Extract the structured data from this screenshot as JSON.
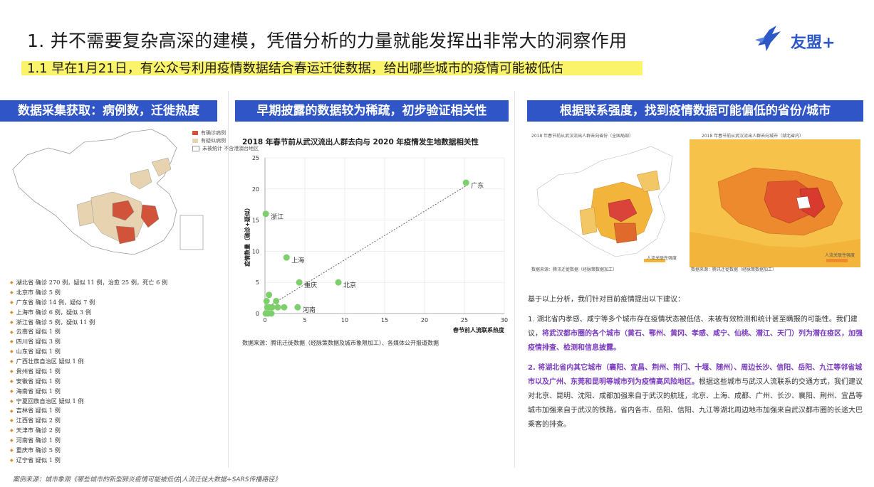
{
  "header": {
    "title": "1. 并不需要复杂高深的建模，凭借分析的力量就能发挥出非常大的洞察作用",
    "subtitle": "1.1 早在1月21日，有公众号利用疫情数据结合春运迁徙数据，给出哪些城市的疫情可能被低估",
    "logo_text": "友盟+"
  },
  "panels": {
    "p1": {
      "header": "数据采集获取：病例数，迁徙热度",
      "legend": [
        "有确诊病例",
        "有疑似病例",
        "未被统计 不含港澳台地区"
      ],
      "cases": [
        "湖北省 确诊 270 例，疑似 11 例，治愈 25 例，死亡 6 例",
        "北京市 确诊 5 例",
        "广东省 确诊 14 例，疑似 7 例",
        "上海市 确诊 6 例，疑似 3 例",
        "浙江省 确诊 5 例，疑似 11 例",
        "云南省 疑似 1 例",
        "四川省 疑似 3 例",
        "山东省 疑似 1 例",
        "广西壮族自治区 疑似 1 例",
        "贵州省 疑似 1 例",
        "安徽省 疑似 1 例",
        "海南省 疑似 1 例",
        "宁夏回族自治区 疑似 1 例",
        "吉林省 疑似 1 例",
        "江西省 疑似 2 例",
        "天津市 确诊 2 例",
        "河南省 确诊 1 例",
        "重庆市 确诊 5 例",
        "辽宁省 疑似 1 例"
      ]
    },
    "p2": {
      "header": "早期披露的数据较为稀疏，初步验证相关性",
      "source": "数据来源：腾讯迁徙数据（经脉策数据及城市象限加工）、各媒体公开报道数据"
    },
    "p3": {
      "header": "根据联系强度，找到疫情数据可能偏低的省份/城市",
      "map1_title": "2018 年春节前从武汉流出人群去向省份（全国局部）",
      "map2_title": "2018 年春节前从武汉流出人群去向城市（湖北省内）",
      "map1_source": "数据来源：腾讯迁徙数据（经脉策数据加工）",
      "map2_source": "数据来源：腾讯迁徙数据（经脉策数据加工）",
      "map_legend": "人流关联性强度",
      "intro": "基于以上分析，我们针对目前疫情提出以下建议：",
      "advice1_pre": "1. 湖北省内孝感、咸宁等多个城市存在疫情状态被低估、未被有效检测和统计甚至瞒报的可能性。我们建议，",
      "advice1_hl": "将武汉都市圈的各个城市（黄石、鄂州、黄冈、孝感、咸宁、仙桃、潜江、天门）列为潜在疫区，加强疫情排查、检测和信息披露。",
      "advice2_hl": "2. 将湖北省内其它城市（襄阳、宜昌、荆州、荆门、十堰、随州）、周边长沙、信阳、岳阳、九江等邻省城市以及广州、东莞和昆明等城市列为疫情高风险地区。",
      "advice2_post": "根据这些城市与武汉人流联系的交通方式，我们建议对北京、昆明、沈阳、成都加强来自于武汉的航班，北京、上海、成都、广州、长沙、襄阳、荆州、宜昌等城市加强来自于武汉的铁路，省内各市、岳阳、信阳、九江等湖北周边地市加强来自武汉都市圈的长途大巴乘客的排查。"
    }
  },
  "footer": "案例来源：城市象限《哪些城市的新型肺炎疫情可能被低估|人流迁徙大数据+SARS传播路径》",
  "chart_data": {
    "type": "scatter",
    "title": "2018 年春节前从武汉流出人群去向与 2020 年疫情发生地数据相关性",
    "xlabel": "春节前人流联系热度",
    "ylabel": "疫情数量（确诊+疑似）",
    "xlim": [
      0,
      30
    ],
    "ylim": [
      0,
      25
    ],
    "xticks": [
      0,
      5,
      10,
      15,
      20,
      25,
      30
    ],
    "yticks": [
      0,
      5,
      10,
      15,
      20,
      25
    ],
    "color": "#7dcf6c",
    "points": [
      {
        "x": 25.2,
        "y": 21,
        "label": "广东"
      },
      {
        "x": 0.1,
        "y": 16,
        "label": "浙江"
      },
      {
        "x": 2.7,
        "y": 9,
        "label": "上海"
      },
      {
        "x": 4.3,
        "y": 5,
        "label": "重庆"
      },
      {
        "x": 9.2,
        "y": 5,
        "label": "北京"
      },
      {
        "x": 4.1,
        "y": 1,
        "label": "河南"
      },
      {
        "x": 0.5,
        "y": 3,
        "label": ""
      },
      {
        "x": 0.2,
        "y": 2,
        "label": ""
      },
      {
        "x": 1.4,
        "y": 2,
        "label": ""
      },
      {
        "x": 0.3,
        "y": 1,
        "label": ""
      },
      {
        "x": 0.9,
        "y": 1,
        "label": ""
      },
      {
        "x": 1.6,
        "y": 1,
        "label": ""
      },
      {
        "x": 2.4,
        "y": 1,
        "label": ""
      },
      {
        "x": 0.1,
        "y": 0,
        "label": ""
      },
      {
        "x": 0.4,
        "y": 0,
        "label": ""
      },
      {
        "x": 0.6,
        "y": 1,
        "label": ""
      },
      {
        "x": 0.8,
        "y": 0,
        "label": ""
      }
    ],
    "trendline": {
      "from": [
        0,
        0.8
      ],
      "to": [
        25.2,
        20.5
      ],
      "style": "dotted"
    }
  }
}
